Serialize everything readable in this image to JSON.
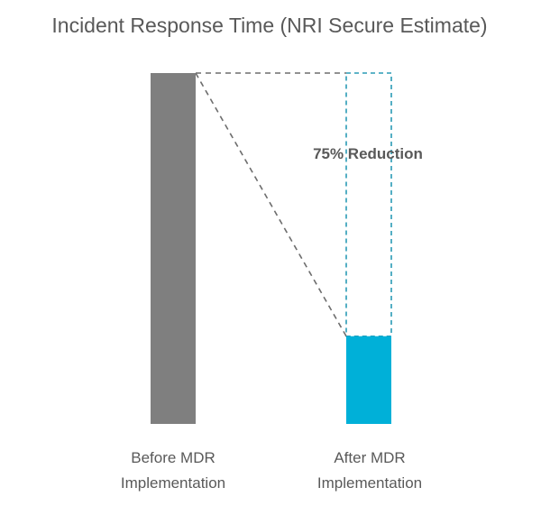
{
  "chart_data": {
    "type": "bar",
    "title": "Incident Response Time (NRI Secure Estimate)",
    "categories": [
      {
        "line1": "Before MDR",
        "line2": "Implementation"
      },
      {
        "line1": "After MDR",
        "line2": "Implementation"
      }
    ],
    "values": [
      100,
      25
    ],
    "ylim": [
      0,
      100
    ],
    "grid": false,
    "legend": "none",
    "annotation": "75% Reduction",
    "colors": {
      "before_bar": "#7f7f7f",
      "after_bar": "#00b0d8",
      "reference_outline": "#2a9bb5",
      "connector": "#6d6d6d",
      "text": "#595959"
    }
  }
}
